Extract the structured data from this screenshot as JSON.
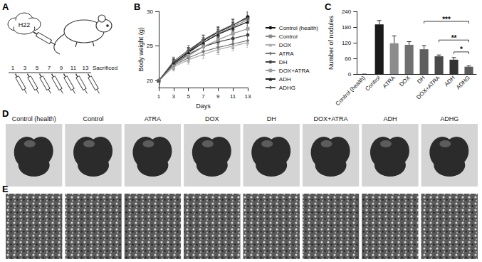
{
  "panel_labels": [
    "A",
    "B",
    "C",
    "D",
    "E"
  ],
  "panel_a": {
    "cell_line": "H22",
    "days": [
      1,
      3,
      5,
      7,
      9,
      11,
      13
    ],
    "end_label": "Sacrificed"
  },
  "chart_data": [
    {
      "type": "line",
      "x": [
        1,
        3,
        5,
        7,
        9,
        11,
        13
      ],
      "xlim": [
        1,
        13
      ],
      "xticks": [
        1,
        3,
        5,
        7,
        9,
        11,
        13
      ],
      "ylim": [
        19,
        30
      ],
      "yticks": [
        20,
        25,
        30
      ],
      "x_label": "Days",
      "y_label": "Body weight (g)",
      "grid": false,
      "legend": "right",
      "series": [
        {
          "name": "Control (health)",
          "color": "#111111",
          "marker": "circle",
          "line_style": "solid",
          "values": [
            20,
            22.5,
            24.2,
            25.8,
            27.0,
            28.0,
            29.2
          ],
          "errors": [
            0.5,
            0.6,
            0.6,
            0.7,
            0.7,
            0.8,
            0.8
          ]
        },
        {
          "name": "Control",
          "color": "#8a8a8a",
          "marker": "square",
          "line_style": "solid",
          "values": [
            20,
            22.3,
            24.0,
            25.5,
            26.8,
            27.8,
            28.8
          ],
          "errors": [
            0.5,
            0.6,
            0.6,
            0.7,
            0.7,
            0.7,
            0.8
          ]
        },
        {
          "name": "DOX",
          "color": "#b0b0b0",
          "marker": "triangle",
          "line_style": "solid",
          "values": [
            20,
            22.0,
            23.0,
            23.8,
            24.5,
            25.0,
            25.5
          ],
          "errors": [
            0.5,
            0.6,
            0.6,
            0.6,
            0.7,
            0.7,
            0.7
          ]
        },
        {
          "name": "ATRA",
          "color": "#767676",
          "marker": "diamond",
          "line_style": "solid",
          "values": [
            20,
            22.2,
            23.3,
            24.2,
            24.8,
            25.3,
            25.8
          ],
          "errors": [
            0.5,
            0.6,
            0.6,
            0.6,
            0.7,
            0.7,
            0.7
          ]
        },
        {
          "name": "DH",
          "color": "#444444",
          "marker": "circle",
          "line_style": "solid",
          "values": [
            20,
            22.4,
            23.8,
            24.9,
            25.6,
            26.1,
            26.6
          ],
          "errors": [
            0.5,
            0.6,
            0.6,
            0.7,
            0.7,
            0.7,
            0.8
          ]
        },
        {
          "name": "DOX+ATRA",
          "color": "#9c9c9c",
          "marker": "square",
          "line_style": "solid",
          "values": [
            20,
            22.3,
            23.6,
            24.9,
            25.9,
            26.8,
            27.5
          ],
          "errors": [
            0.5,
            0.6,
            0.6,
            0.7,
            0.7,
            0.7,
            0.8
          ]
        },
        {
          "name": "ADH",
          "color": "#222222",
          "marker": "triangle",
          "line_style": "solid",
          "values": [
            20,
            22.6,
            24.1,
            25.5,
            26.7,
            27.6,
            28.5
          ],
          "errors": [
            0.5,
            0.6,
            0.6,
            0.7,
            0.7,
            0.8,
            0.8
          ]
        },
        {
          "name": "ADHG",
          "color": "#5a5a5a",
          "marker": "diamond",
          "line_style": "solid",
          "values": [
            20,
            22.8,
            24.4,
            25.9,
            27.1,
            28.1,
            29.0
          ],
          "errors": [
            0.5,
            0.6,
            0.7,
            0.7,
            0.7,
            0.8,
            0.8
          ]
        }
      ]
    },
    {
      "type": "bar",
      "categories": [
        "Control (health)",
        "Control",
        "ATRA",
        "DOX",
        "DH",
        "DOX+ATRA",
        "ADH",
        "ADHG"
      ],
      "values": [
        0,
        190,
        118,
        112,
        95,
        68,
        55,
        28
      ],
      "errors": [
        0,
        15,
        28,
        12,
        14,
        5,
        8,
        3
      ],
      "colors": [
        "#111111",
        "#1a1a1a",
        "#8c8c8c",
        "#707070",
        "#5e5e5e",
        "#4a4a4a",
        "#333333",
        "#5a5a5a"
      ],
      "ylim": [
        0,
        240
      ],
      "yticks": [
        0,
        60,
        120,
        180,
        240
      ],
      "y_label": "Number of nodules",
      "grid": false,
      "annotations": [
        {
          "from": "DH",
          "to": "ADHG",
          "text": "***"
        },
        {
          "from": "DOX+ATRA",
          "to": "ADHG",
          "text": "**"
        },
        {
          "from": "ADH",
          "to": "ADHG",
          "text": "*"
        }
      ]
    }
  ],
  "panel_d": {
    "groups": [
      "Control (health)",
      "Control",
      "ATRA",
      "DOX",
      "DH",
      "DOX+ATRA",
      "ADH",
      "ADHG"
    ]
  }
}
